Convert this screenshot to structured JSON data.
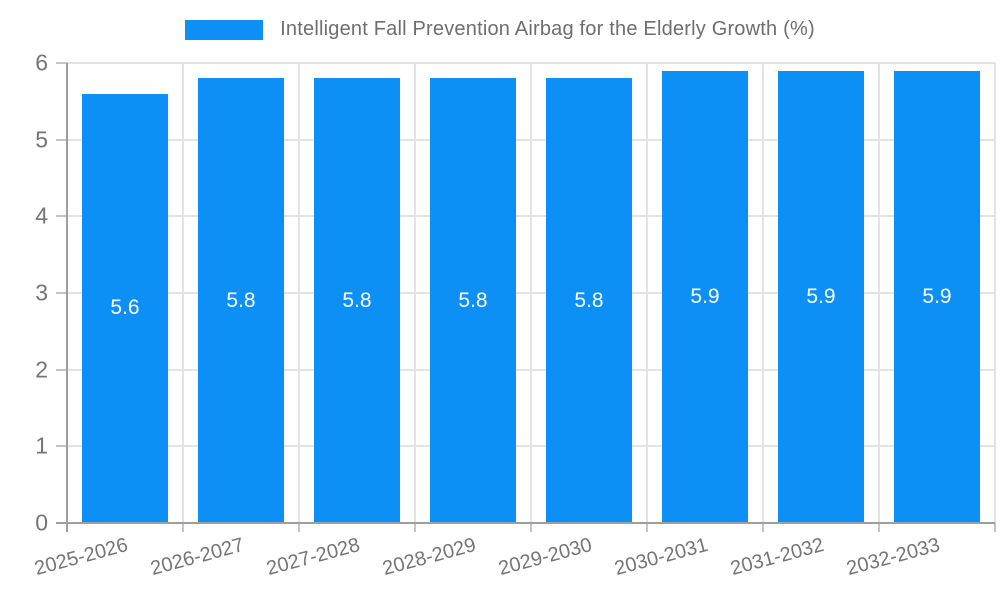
{
  "legend": {
    "label": "Intelligent Fall Prevention Airbag for the Elderly Growth (%)"
  },
  "chart_data": {
    "type": "bar",
    "title": "Intelligent Fall Prevention Airbag for the Elderly Growth (%)",
    "categories": [
      "2025-2026",
      "2026-2027",
      "2027-2028",
      "2028-2029",
      "2029-2030",
      "2030-2031",
      "2031-2032",
      "2032-2033"
    ],
    "values": [
      5.6,
      5.8,
      5.8,
      5.8,
      5.8,
      5.9,
      5.9,
      5.9
    ],
    "bar_labels": [
      "5.6",
      "5.8",
      "5.8",
      "5.8",
      "5.8",
      "5.9",
      "5.9",
      "5.9"
    ],
    "xlabel": "",
    "ylabel": "",
    "ylim": [
      0,
      6
    ],
    "yticks": [
      0,
      1,
      2,
      3,
      4,
      5,
      6
    ],
    "grid": true,
    "legend_position": "top-center",
    "colors": {
      "bar": "#0D90F5",
      "bar_label": "#FFFFFF",
      "grid": "#E3E3E3",
      "axis": "#9E9E9E",
      "tick": "#C4C4C4",
      "tick_text": "#757575",
      "title_text": "#6E6E6E",
      "background": "#FFFFFF"
    }
  }
}
